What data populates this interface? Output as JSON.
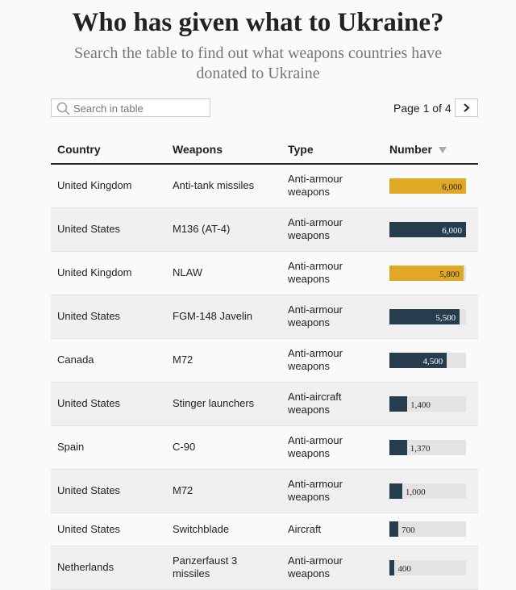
{
  "header": {
    "title": "Who has given what to Ukraine?",
    "subtitle": "Search the table to find out what weapons countries have donated to Ukraine"
  },
  "search": {
    "placeholder": "Search in table"
  },
  "pagination": {
    "label": "Page 1 of 4"
  },
  "table": {
    "columns": [
      "Country",
      "Weapons",
      "Type",
      "Number"
    ],
    "rows": [
      {
        "country": "United Kingdom",
        "weapon": "Anti-tank missiles",
        "type": "Anti-armour weapons",
        "value": 6000,
        "label": "6,000",
        "color": "#e0a825"
      },
      {
        "country": "United States",
        "weapon": "M136 (AT-4)",
        "type": "Anti-armour weapons",
        "value": 6000,
        "label": "6,000",
        "color": "#263d4d"
      },
      {
        "country": "United Kingdom",
        "weapon": "NLAW",
        "type": "Anti-armour weapons",
        "value": 5800,
        "label": "5,800",
        "color": "#e0a825"
      },
      {
        "country": "United States",
        "weapon": "FGM-148 Javelin",
        "type": "Anti-armour weapons",
        "value": 5500,
        "label": "5,500",
        "color": "#263d4d"
      },
      {
        "country": "Canada",
        "weapon": "M72",
        "type": "Anti-armour weapons",
        "value": 4500,
        "label": "4,500",
        "color": "#263d4d"
      },
      {
        "country": "United States",
        "weapon": "Stinger launchers",
        "type": "Anti-aircraft weapons",
        "value": 1400,
        "label": "1,400",
        "color": "#263d4d"
      },
      {
        "country": "Spain",
        "weapon": "C-90",
        "type": "Anti-armour weapons",
        "value": 1370,
        "label": "1,370",
        "color": "#263d4d"
      },
      {
        "country": "United States",
        "weapon": "M72",
        "type": "Anti-armour weapons",
        "value": 1000,
        "label": "1,000",
        "color": "#263d4d"
      },
      {
        "country": "United States",
        "weapon": "Switchblade",
        "type": "Aircraft",
        "value": 700,
        "label": "700",
        "color": "#263d4d"
      },
      {
        "country": "Netherlands",
        "weapon": "Panzerfaust 3 missiles",
        "type": "Anti-armour weapons",
        "value": 400,
        "label": "400",
        "color": "#263d4d"
      }
    ]
  }
}
